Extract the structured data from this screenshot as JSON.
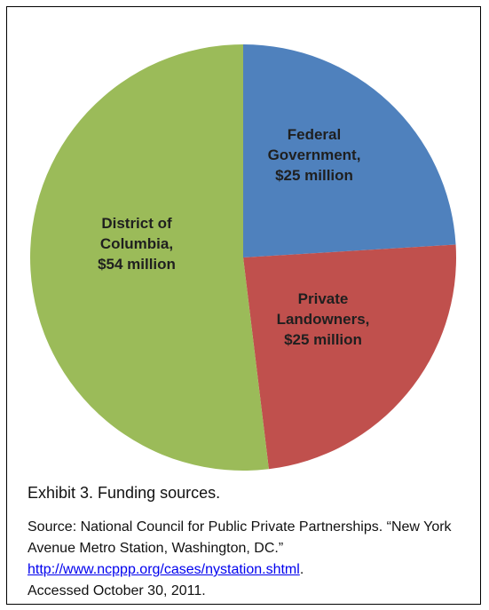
{
  "chart_data": {
    "type": "pie",
    "unit": "million",
    "slices": [
      {
        "name": "Federal Government",
        "value": 25,
        "label_lines": [
          "Federal",
          "Government,",
          "$25 million"
        ],
        "color": "#4f81bd"
      },
      {
        "name": "Private Landowners",
        "value": 25,
        "label_lines": [
          "Private",
          "Landowners,",
          "$25 million"
        ],
        "color": "#c0504d"
      },
      {
        "name": "District of Columbia",
        "value": 54,
        "label_lines": [
          "District of",
          "Columbia,",
          "$54 million"
        ],
        "color": "#9bbb59"
      }
    ],
    "legend": "none"
  },
  "caption": "Exhibit 3. Funding sources.",
  "source": {
    "prefix": "Source: National Council for Public Private Partnerships. “New York Avenue Metro Station, Washington, DC.”",
    "url": "http://www.ncppp.org/cases/nystation.shtml",
    "after_link": ".",
    "accessed": "Accessed October 30, 2011."
  }
}
